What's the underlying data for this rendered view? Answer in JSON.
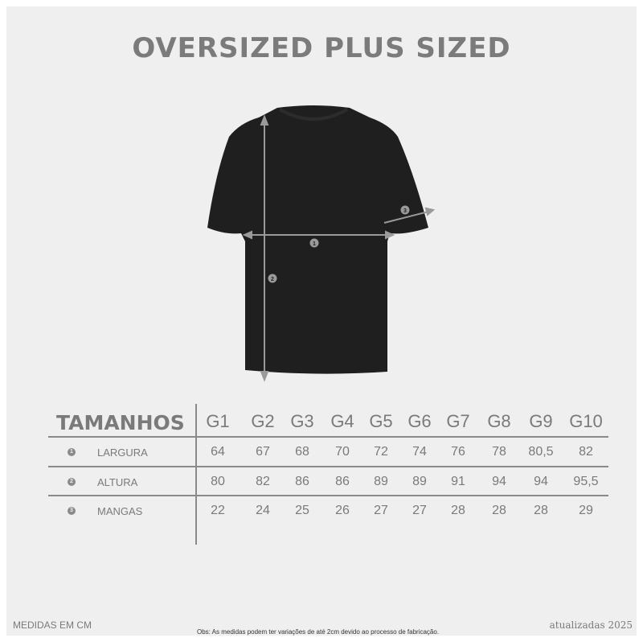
{
  "title": "OVERSIZED PLUS SIZED",
  "diagram": {
    "markers": [
      "1",
      "2",
      "3"
    ],
    "garment_color": "#1e1e1e",
    "arrow_color": "#9a9a9a"
  },
  "table": {
    "header_label": "TAMANHOS",
    "sizes": [
      "G1",
      "G2",
      "G3",
      "G4",
      "G5",
      "G6",
      "G7",
      "G8",
      "G9",
      "G10"
    ],
    "rows": [
      {
        "marker": "1",
        "label": "LARGURA",
        "values": [
          "64",
          "67",
          "68",
          "70",
          "72",
          "74",
          "76",
          "78",
          "80,5",
          "82"
        ]
      },
      {
        "marker": "2",
        "label": "ALTURA",
        "values": [
          "80",
          "82",
          "86",
          "86",
          "89",
          "89",
          "91",
          "94",
          "94",
          "95,5"
        ]
      },
      {
        "marker": "3",
        "label": "MANGAS",
        "values": [
          "22",
          "24",
          "25",
          "26",
          "27",
          "27",
          "28",
          "28",
          "28",
          "29"
        ]
      }
    ]
  },
  "footer": {
    "units": "MEDIDAS EM CM",
    "note": "Obs: As medidas podem ter variações de até 2cm devido ao processo de fabricação.",
    "updated": "atualizadas 2025"
  }
}
